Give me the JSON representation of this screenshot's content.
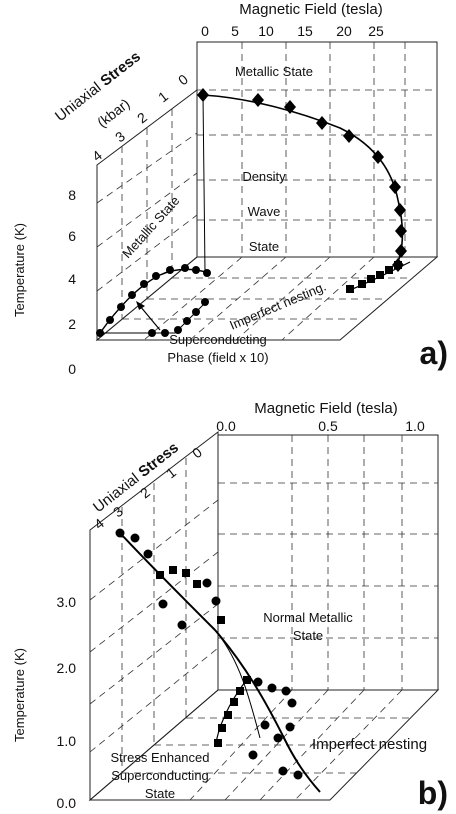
{
  "panel_a": {
    "panel_label": "a)",
    "axes": {
      "field_title": "Magnetic Field (tesla)",
      "field_ticks": [
        "0",
        "5",
        "10",
        "15",
        "20",
        "25"
      ],
      "stress_title_prefix": "Uniaxial ",
      "stress_title_bold": "Stress",
      "stress_unit": "(kbar)",
      "stress_ticks": [
        "4",
        "3",
        "2",
        "1",
        "0"
      ],
      "temperature_title": "Temperature (K)",
      "temperature_ticks": [
        "0",
        "2",
        "4",
        "6",
        "8"
      ]
    },
    "annotations": {
      "metallic_state_top": "Metallic State",
      "metallic_state_side": "Metallic State",
      "density": "Density",
      "wave": "Wave",
      "state": "State",
      "imperfect_nesting": "Imperfect nesting.",
      "superconducting_line1": "Superconducting",
      "superconducting_line2": "Phase (field x 10)"
    }
  },
  "panel_b": {
    "panel_label": "b)",
    "axes": {
      "field_title": "Magnetic Field (tesla)",
      "field_ticks": [
        "0.0",
        "0.5",
        "1.0"
      ],
      "stress_title_prefix": "Uniaxial ",
      "stress_title_bold": "Stress",
      "stress_ticks": [
        "4",
        "3",
        "2",
        "1",
        "0"
      ],
      "temperature_title": "Temperature (K)",
      "temperature_ticks": [
        "0.0",
        "1.0",
        "2.0",
        "3.0"
      ]
    },
    "annotations": {
      "normal_metallic_line1": "Normal Metallic",
      "normal_metallic_line2": "State",
      "imperfect_nesting": "Imperfect nesting",
      "stress_enhanced_line1": "Stress Enhanced",
      "stress_enhanced_line2": "Superconducting",
      "stress_enhanced_line3": "State"
    }
  },
  "chart_data": [
    {
      "type": "scatter",
      "panel": "a)",
      "x_axis": "Magnetic Field (tesla)",
      "y_axis": "Temperature (K)",
      "z_axis": "Uniaxial Stress (kbar)",
      "xlim": [
        0,
        25
      ],
      "ylim": [
        0,
        9
      ],
      "zlim": [
        0,
        4
      ],
      "series": [
        {
          "name": "Density Wave State",
          "marker": "diamond",
          "stress": 0,
          "points": [
            {
              "field": 0,
              "temperature": 8.3
            },
            {
              "field": 5,
              "temperature": 8.1
            },
            {
              "field": 10,
              "temperature": 8.0
            },
            {
              "field": 15,
              "temperature": 7.7
            },
            {
              "field": 20,
              "temperature": 7.0
            },
            {
              "field": 23,
              "temperature": 6.5
            },
            {
              "field": 25,
              "temperature": 5.8
            },
            {
              "field": 25.8,
              "temperature": 4.9
            },
            {
              "field": 25.9,
              "temperature": 4.1
            },
            {
              "field": 26,
              "temperature": 3.2
            },
            {
              "field": 26,
              "temperature": 2.7
            }
          ]
        },
        {
          "name": "Imperfect nesting",
          "marker": "square",
          "stress": 0,
          "points": [
            {
              "field": 24.5,
              "temperature": 1.4
            },
            {
              "field": 24.8,
              "temperature": 1.8
            },
            {
              "field": 25,
              "temperature": 2.0
            },
            {
              "field": 25.2,
              "temperature": 2.2
            },
            {
              "field": 25.5,
              "temperature": 2.4
            },
            {
              "field": 26,
              "temperature": 2.6
            }
          ]
        },
        {
          "name": "Superconducting Phase (field x 10)",
          "marker": "circle",
          "stress": 4,
          "points": [
            {
              "field": 0,
              "temperature": 1.2
            },
            {
              "field": 0.5,
              "temperature": 1.8
            },
            {
              "field": 1,
              "temperature": 2.4
            },
            {
              "field": 1.5,
              "temperature": 3.0
            },
            {
              "field": 2,
              "temperature": 3.6
            },
            {
              "field": 3,
              "temperature": 4.2
            },
            {
              "field": 5,
              "temperature": 4.4
            },
            {
              "field": 7,
              "temperature": 4.5
            }
          ]
        }
      ]
    },
    {
      "type": "scatter",
      "panel": "b)",
      "x_axis": "Magnetic Field (tesla)",
      "y_axis": "Temperature (K)",
      "z_axis": "Uniaxial Stress (kbar)",
      "xlim": [
        0,
        1.0
      ],
      "ylim": [
        0,
        3.6
      ],
      "zlim": [
        0,
        4
      ],
      "series": [
        {
          "name": "circles",
          "marker": "circle",
          "points": [
            {
              "field": 0.0,
              "temperature": 3.5
            },
            {
              "field": 0.02,
              "temperature": 3.4
            },
            {
              "field": 0.05,
              "temperature": 3.1
            },
            {
              "field": 0.08,
              "temperature": 2.7
            },
            {
              "field": 0.12,
              "temperature": 2.5
            },
            {
              "field": 0.15,
              "temperature": 0.75
            },
            {
              "field": 0.2,
              "temperature": 0.9
            },
            {
              "field": 0.25,
              "temperature": 1.1
            },
            {
              "field": 0.3,
              "temperature": 1.0
            },
            {
              "field": 0.32,
              "temperature": 0.6
            },
            {
              "field": 0.35,
              "temperature": 0.4
            }
          ]
        },
        {
          "name": "squares",
          "marker": "square",
          "points": [
            {
              "field": 0.05,
              "temperature": 3.0
            },
            {
              "field": 0.08,
              "temperature": 3.05
            },
            {
              "field": 0.1,
              "temperature": 3.0
            },
            {
              "field": 0.13,
              "temperature": 2.8
            },
            {
              "field": 0.15,
              "temperature": 2.6
            },
            {
              "field": 0.05,
              "temperature": 1.2
            },
            {
              "field": 0.08,
              "temperature": 1.3
            },
            {
              "field": 0.1,
              "temperature": 1.4
            },
            {
              "field": 0.12,
              "temperature": 1.45
            }
          ]
        }
      ]
    }
  ]
}
